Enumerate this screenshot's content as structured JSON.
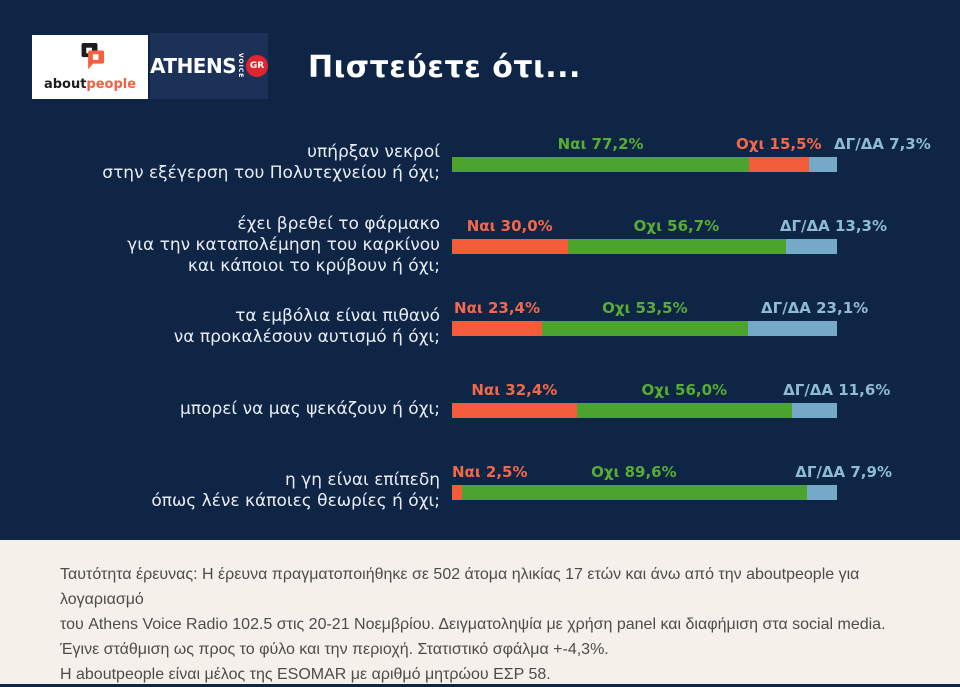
{
  "brand": {
    "aboutpeople": {
      "about": "about",
      "people": "people"
    },
    "athens_voice": {
      "name": "ATHENS",
      "voice": "VOICE",
      "badge": "GR"
    }
  },
  "title": "Πιστεύετε ότι...",
  "chart_data": {
    "type": "bar",
    "orientation": "horizontal_stacked",
    "unit": "%",
    "answers": [
      "Ναι",
      "Οχι",
      "ΔΓ/ΔΑ"
    ],
    "colors": {
      "green": "#4CA32D",
      "orange": "#F25C3B",
      "blue": "#74AAC7"
    },
    "label_colors": {
      "green": "#58AC33",
      "orange": "#F4684A",
      "blue": "#8FBBD5"
    },
    "background": "#0E2546",
    "rows": [
      {
        "question_lines": [
          "υπήρξαν νεκροί",
          "στην εξέγερση του Πολυτεχνείου ή όχι;"
        ],
        "segments": [
          {
            "key": "nai",
            "answer": "Ναι",
            "value": 77.2,
            "label": "Ναι 77,2%",
            "color": "green"
          },
          {
            "key": "oxi",
            "answer": "Οχι",
            "value": 15.5,
            "label": "Οχι 15,5%",
            "color": "orange"
          },
          {
            "key": "dgda",
            "answer": "ΔΓ/ΔΑ",
            "value": 7.3,
            "label": "ΔΓ/ΔΑ 7,3%",
            "color": "blue"
          }
        ]
      },
      {
        "question_lines": [
          "έχει βρεθεί το φάρμακο",
          "για την καταπολέμηση του καρκίνου",
          "και κάποιοι το κρύβουν ή όχι;"
        ],
        "segments": [
          {
            "key": "nai",
            "answer": "Ναι",
            "value": 30.0,
            "label": "Ναι 30,0%",
            "color": "orange"
          },
          {
            "key": "oxi",
            "answer": "Οχι",
            "value": 56.7,
            "label": "Οχι 56,7%",
            "color": "green"
          },
          {
            "key": "dgda",
            "answer": "ΔΓ/ΔΑ",
            "value": 13.3,
            "label": "ΔΓ/ΔΑ 13,3%",
            "color": "blue"
          }
        ]
      },
      {
        "question_lines": [
          "τα εμβόλια είναι πιθανό",
          "να προκαλέσουν αυτισμό ή όχι;"
        ],
        "segments": [
          {
            "key": "nai",
            "answer": "Ναι",
            "value": 23.4,
            "label": "Ναι 23,4%",
            "color": "orange"
          },
          {
            "key": "oxi",
            "answer": "Οχι",
            "value": 53.5,
            "label": "Οχι 53,5%",
            "color": "green"
          },
          {
            "key": "dgda",
            "answer": "ΔΓ/ΔΑ",
            "value": 23.1,
            "label": "ΔΓ/ΔΑ 23,1%",
            "color": "blue"
          }
        ]
      },
      {
        "question_lines": [
          "μπορεί να μας ψεκάζουν ή όχι;"
        ],
        "segments": [
          {
            "key": "nai",
            "answer": "Ναι",
            "value": 32.4,
            "label": "Ναι 32,4%",
            "color": "orange"
          },
          {
            "key": "oxi",
            "answer": "Οχι",
            "value": 56.0,
            "label": "Οχι 56,0%",
            "color": "green"
          },
          {
            "key": "dgda",
            "answer": "ΔΓ/ΔΑ",
            "value": 11.6,
            "label": "ΔΓ/ΔΑ 11,6%",
            "color": "blue"
          }
        ]
      },
      {
        "question_lines": [
          "η γη είναι επίπεδη",
          "όπως λένε κάποιες θεωρίες ή όχι;"
        ],
        "segments": [
          {
            "key": "nai",
            "answer": "Ναι",
            "value": 2.5,
            "label": "Ναι 2,5%",
            "color": "orange"
          },
          {
            "key": "oxi",
            "answer": "Οχι",
            "value": 89.6,
            "label": "Οχι 89,6%",
            "color": "green"
          },
          {
            "key": "dgda",
            "answer": "ΔΓ/ΔΑ",
            "value": 7.9,
            "label": "ΔΓ/ΔΑ 7,9%",
            "color": "blue"
          }
        ]
      }
    ]
  },
  "footer": {
    "lines": [
      "Ταυτότητα έρευνας: Η έρευνα πραγματοποιήθηκε σε 502 άτομα ηλικίας 17 ετών και άνω από την aboutpeople για λογαριασμό",
      "του Athens Voice Radio 102.5 στις 20-21 Νοεμβρίου. Δειγματοληψία με χρήση panel και διαφήμιση στα social media.",
      "Έγινε στάθμιση ως προς το φύλο και την περιοχή. Στατιστικό σφάλμα +-4,3%.",
      "Η aboutpeople είναι μέλος της ESOMAR με αριθμό μητρώου ΕΣΡ 58."
    ]
  }
}
